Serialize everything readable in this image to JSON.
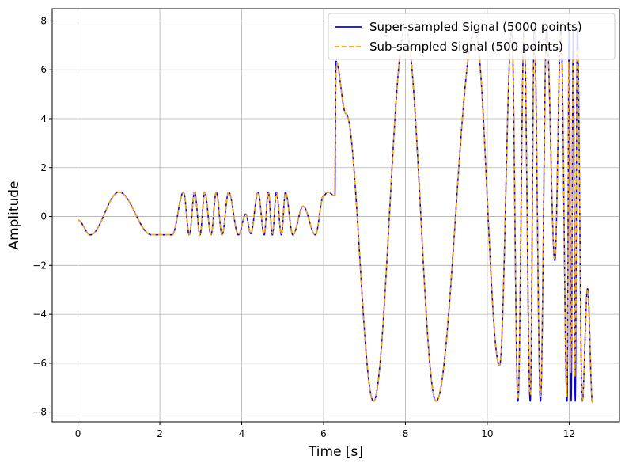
{
  "chart_data": {
    "type": "line",
    "title": "",
    "xlabel": "Time [s]",
    "ylabel": "Amplitude",
    "xlim": [
      -0.63,
      13.23
    ],
    "ylim": [
      -8.4,
      8.5
    ],
    "xticks": [
      0,
      2,
      4,
      6,
      8,
      10,
      12
    ],
    "xtick_labels": [
      "0",
      "2",
      "4",
      "6",
      "8",
      "10",
      "12"
    ],
    "yticks": [
      -8,
      -6,
      -4,
      -2,
      0,
      2,
      4,
      6,
      8
    ],
    "ytick_labels": [
      "−8",
      "−6",
      "−4",
      "−2",
      "0",
      "2",
      "4",
      "6",
      "8"
    ],
    "grid": true,
    "legend_position": "upper right",
    "series": [
      {
        "name": "Super-sampled Signal (5000 points)",
        "color": "#0000ff",
        "style": "solid",
        "points": 5000
      },
      {
        "name": "Sub-sampled Signal (500 points)",
        "color": "#ffa500",
        "style": "dashed",
        "points": 500
      }
    ],
    "x_end": 12.57,
    "segments": [
      {
        "kind": "sine",
        "t0": 0.0,
        "t1": 2.0,
        "comment_free": true,
        "amp": 1.0,
        "freq": 0.5,
        "phase": -0.3,
        "tail": [
          1.8,
          2.0,
          -0.75
        ]
      },
      {
        "kind": "burst",
        "t0": 2.0,
        "t1": 6.28
      }
    ],
    "extrema_late": [
      [
        6.28,
        0.85
      ],
      [
        6.3,
        6.35
      ],
      [
        6.55,
        4.2
      ],
      [
        7.22,
        -7.55
      ],
      [
        8.0,
        7.7
      ],
      [
        8.75,
        -7.55
      ],
      [
        9.7,
        7.6
      ],
      [
        10.3,
        -6.1
      ],
      [
        10.6,
        7.6
      ],
      [
        10.75,
        -7.55
      ],
      [
        10.9,
        7.6
      ],
      [
        11.05,
        -7.55
      ],
      [
        11.15,
        7.6
      ],
      [
        11.3,
        -7.55
      ],
      [
        11.45,
        7.6
      ],
      [
        11.65,
        -1.8
      ],
      [
        11.8,
        7.6
      ],
      [
        11.95,
        -7.55
      ],
      [
        12.0,
        7.6
      ],
      [
        12.05,
        -7.55
      ],
      [
        12.1,
        7.6
      ],
      [
        12.15,
        -7.55
      ],
      [
        12.2,
        7.6
      ],
      [
        12.32,
        -7.55
      ],
      [
        12.45,
        -2.95
      ],
      [
        12.57,
        -7.6
      ]
    ],
    "extrema_early": [
      [
        0.0,
        -0.15
      ],
      [
        0.3,
        -0.75
      ],
      [
        1.0,
        1.0
      ],
      [
        1.8,
        -0.75
      ],
      [
        2.3,
        -0.75
      ],
      [
        2.58,
        1.0
      ],
      [
        2.72,
        -0.75
      ],
      [
        2.85,
        1.0
      ],
      [
        2.98,
        -0.75
      ],
      [
        3.1,
        1.0
      ],
      [
        3.25,
        -0.75
      ],
      [
        3.38,
        1.0
      ],
      [
        3.52,
        -0.75
      ],
      [
        3.68,
        1.0
      ],
      [
        3.92,
        -0.75
      ],
      [
        4.1,
        0.1
      ],
      [
        4.22,
        -0.7
      ],
      [
        4.4,
        1.0
      ],
      [
        4.55,
        -0.75
      ],
      [
        4.65,
        1.0
      ],
      [
        4.75,
        -0.75
      ],
      [
        4.85,
        1.0
      ],
      [
        4.97,
        -0.75
      ],
      [
        5.07,
        1.0
      ],
      [
        5.25,
        -0.75
      ],
      [
        5.5,
        0.42
      ],
      [
        5.8,
        -0.75
      ],
      [
        6.0,
        0.85
      ],
      [
        6.1,
        1.0
      ],
      [
        6.28,
        0.85
      ]
    ]
  }
}
